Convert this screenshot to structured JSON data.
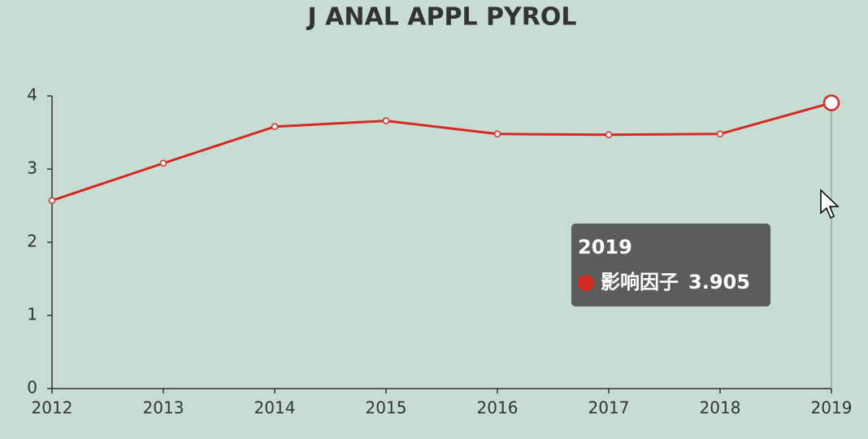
{
  "chart_data": {
    "type": "line",
    "title": "J ANAL APPL PYROL",
    "x": [
      2012,
      2013,
      2014,
      2015,
      2016,
      2017,
      2018,
      2019
    ],
    "series": [
      {
        "name": "影响因子",
        "color": "#d42a23",
        "values": [
          2.57,
          3.08,
          3.58,
          3.66,
          3.48,
          3.47,
          3.48,
          3.905
        ]
      }
    ],
    "xlim": [
      2012,
      2019
    ],
    "xticks": [
      2012,
      2013,
      2014,
      2015,
      2016,
      2017,
      2018,
      2019
    ],
    "ylim": [
      0,
      4
    ],
    "yticks": [
      0,
      1,
      2,
      3,
      4
    ],
    "grid": false
  }
}
